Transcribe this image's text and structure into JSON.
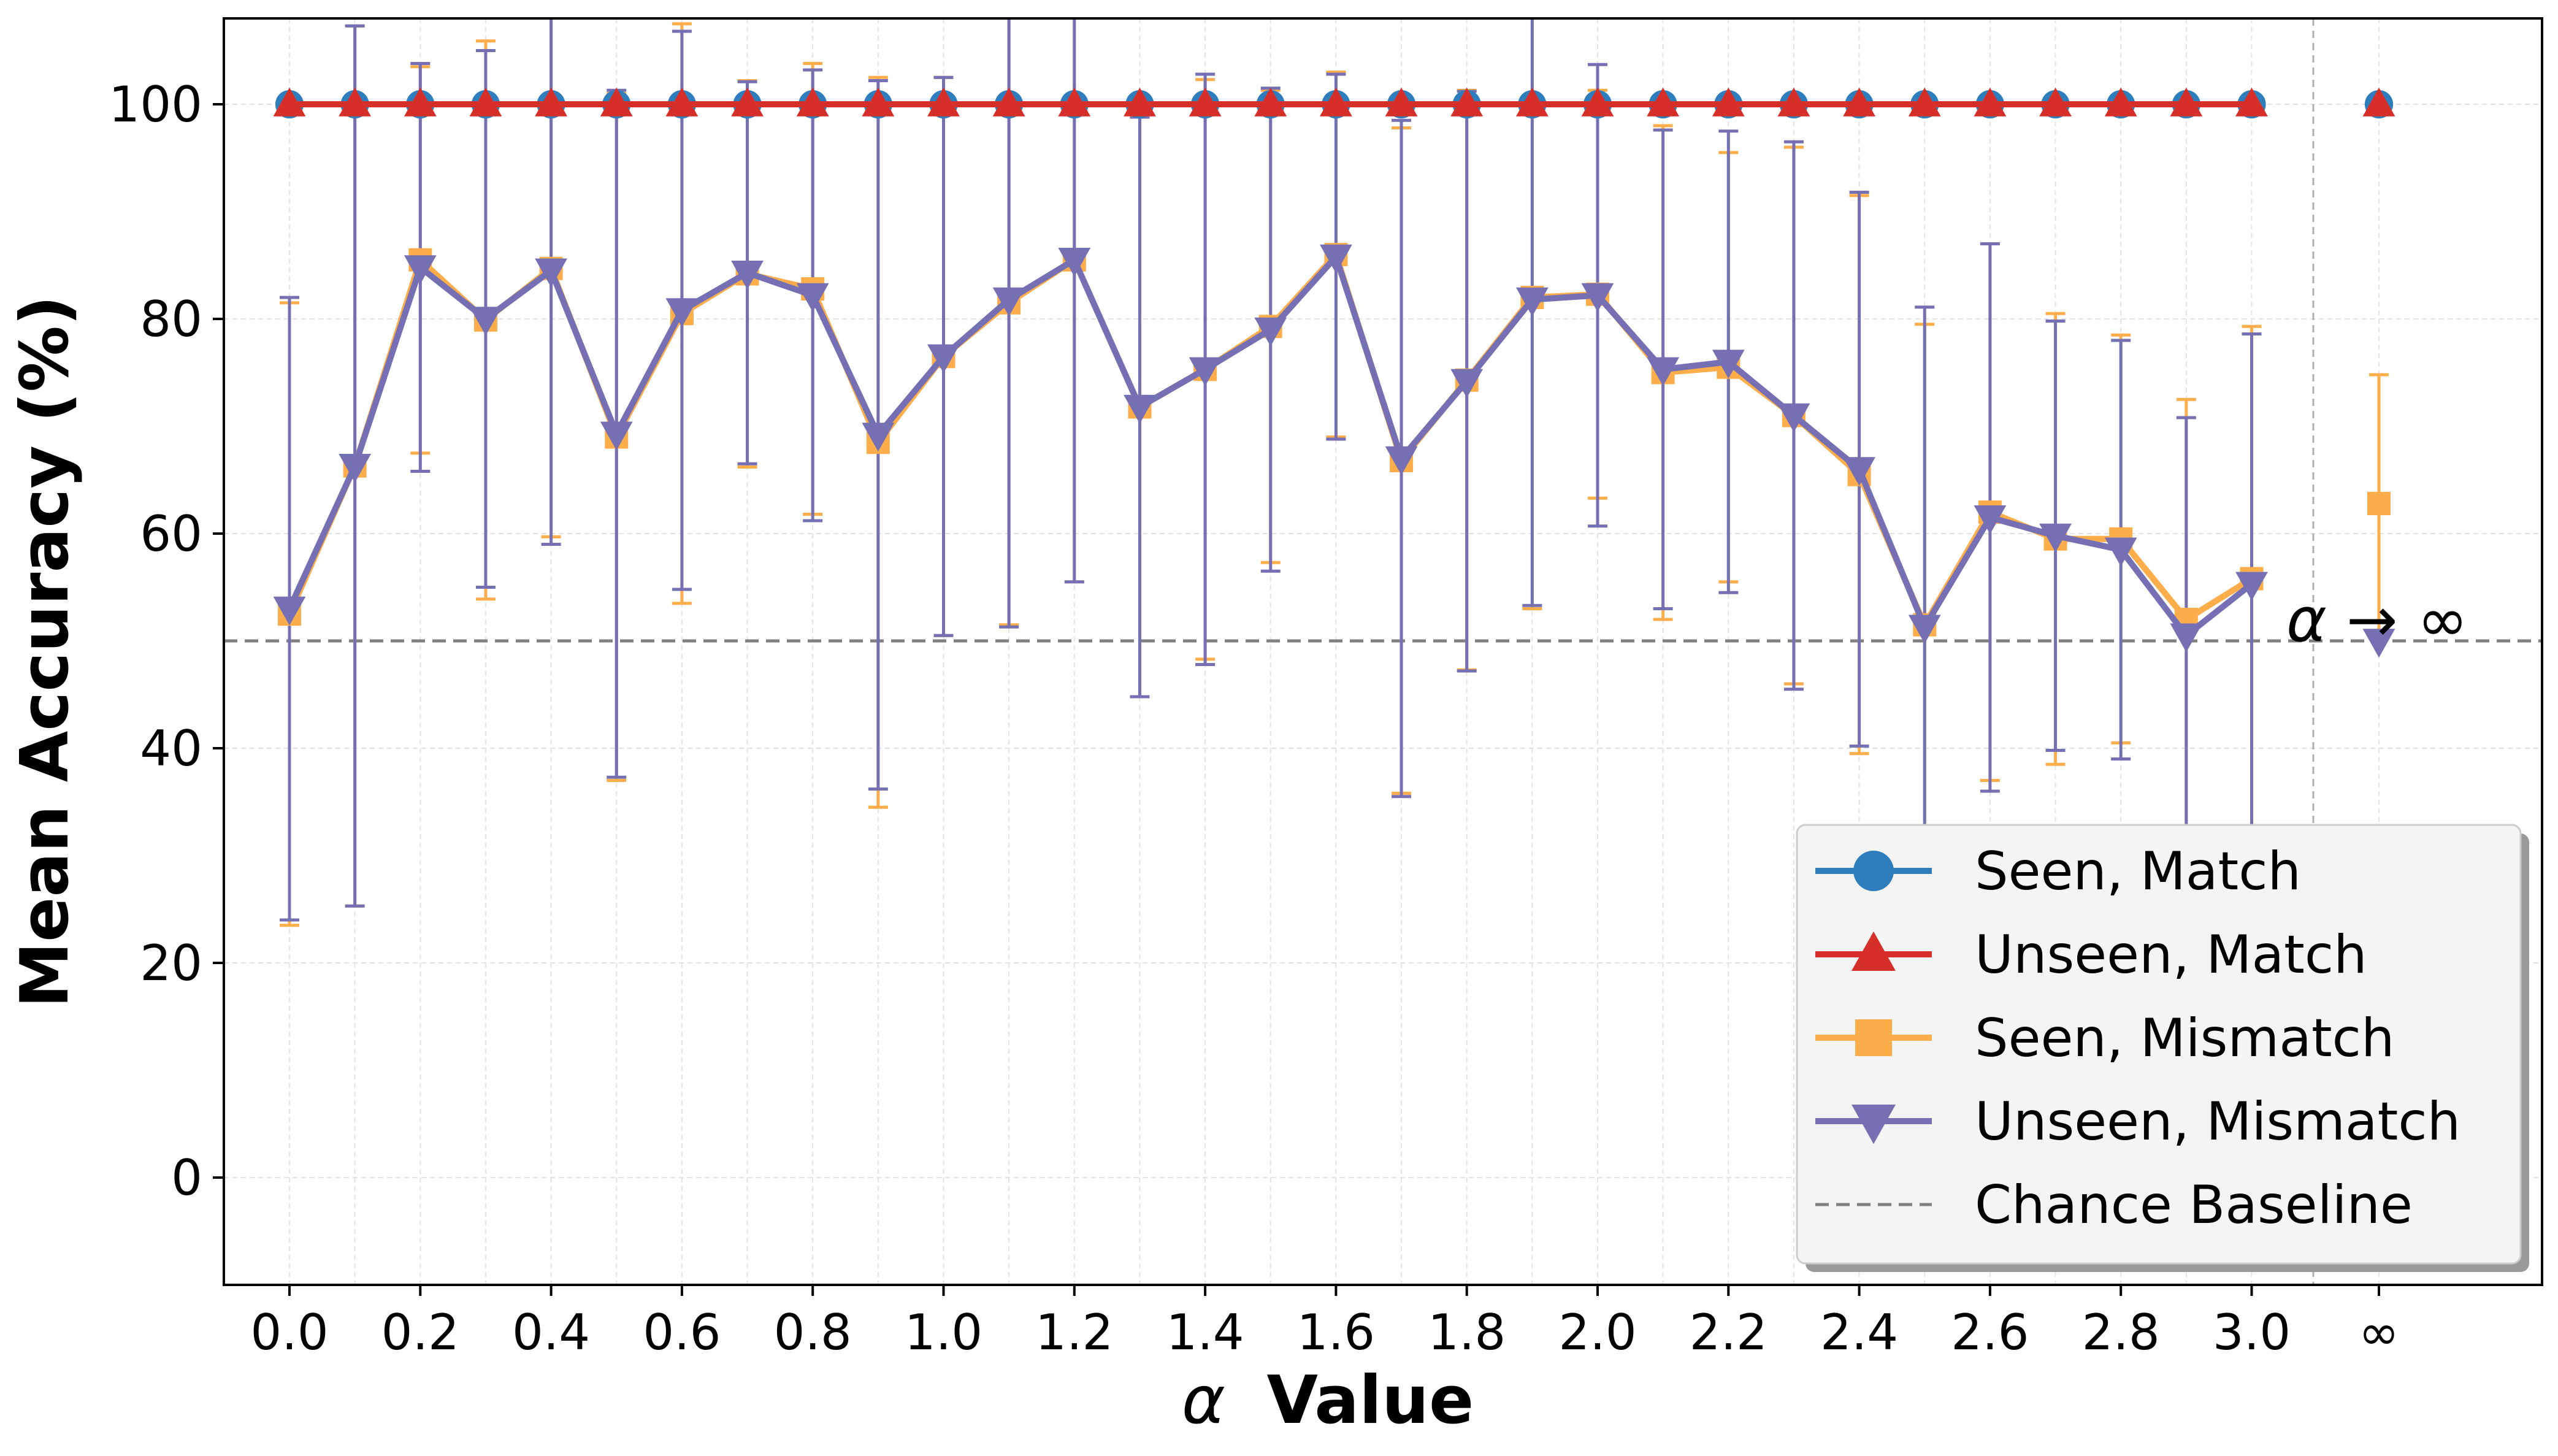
{
  "chart_data": {
    "type": "line",
    "title": "",
    "xlabel_prefix": "α",
    "xlabel": "Value",
    "ylabel": "Mean Accuracy (%)",
    "ylim": [
      -10,
      108
    ],
    "yticks": [
      0,
      20,
      40,
      60,
      80,
      100
    ],
    "x": [
      0.0,
      0.1,
      0.2,
      0.3,
      0.4,
      0.5,
      0.6,
      0.7,
      0.8,
      0.9,
      1.0,
      1.1,
      1.2,
      1.3,
      1.4,
      1.5,
      1.6,
      1.7,
      1.8,
      1.9,
      2.0,
      2.1,
      2.2,
      2.3,
      2.4,
      2.5,
      2.6,
      2.7,
      2.8,
      2.9,
      3.0
    ],
    "xtick_labels": [
      "0.0",
      "0.2",
      "0.4",
      "0.6",
      "0.8",
      "1.0",
      "1.2",
      "1.4",
      "1.6",
      "1.8",
      "2.0",
      "2.2",
      "2.4",
      "2.6",
      "2.8",
      "3.0",
      "∞"
    ],
    "grid": true,
    "legend_position": "lower-right",
    "series": [
      {
        "name": "Seen, Match",
        "color": "#2e7ebd",
        "marker": "circle",
        "values": [
          100,
          100,
          100,
          100,
          100,
          100,
          100,
          100,
          100,
          100,
          100,
          100,
          100,
          100,
          100,
          100,
          100,
          100,
          100,
          100,
          100,
          100,
          100,
          100,
          100,
          100,
          100,
          100,
          100,
          100,
          100
        ],
        "infinity_value": 100
      },
      {
        "name": "Unseen, Match",
        "color": "#d62f2a",
        "marker": "triangle-up",
        "values": [
          100,
          100,
          100,
          100,
          100,
          100,
          100,
          100,
          100,
          100,
          100,
          100,
          100,
          100,
          100,
          100,
          100,
          100,
          100,
          100,
          100,
          100,
          100,
          100,
          100,
          100,
          100,
          100,
          100,
          100,
          100
        ],
        "infinity_value": 100
      },
      {
        "name": "Seen, Mismatch",
        "color": "#fdae4b",
        "marker": "square",
        "values": [
          52.5,
          66.3,
          85.5,
          79.9,
          84.7,
          69.0,
          80.5,
          84.2,
          82.8,
          68.5,
          76.5,
          81.5,
          85.5,
          71.8,
          75.3,
          79.3,
          86.0,
          66.8,
          74.3,
          82.0,
          82.3,
          75.0,
          75.5,
          71.0,
          65.5,
          51.5,
          62.0,
          59.5,
          59.5,
          52.0,
          55.8
        ],
        "errors": [
          29,
          41,
          18,
          26,
          25,
          32,
          27,
          18,
          21,
          34,
          26,
          30,
          30,
          27,
          27,
          22,
          17,
          31,
          27,
          29,
          19,
          23,
          20,
          25,
          26,
          28,
          25,
          21,
          19,
          20.5,
          23.5
        ],
        "infinity_value": 62.8,
        "infinity_error": 12
      },
      {
        "name": "Unseen, Mismatch",
        "color": "#7570b3",
        "marker": "triangle-down",
        "values": [
          53.0,
          66.3,
          84.8,
          80.0,
          84.5,
          69.3,
          80.8,
          84.3,
          82.2,
          69.2,
          76.5,
          81.8,
          85.5,
          71.8,
          75.3,
          79.0,
          85.8,
          67.0,
          74.2,
          81.8,
          82.2,
          75.3,
          76.0,
          71.0,
          66.0,
          51.3,
          61.5,
          59.8,
          58.5,
          50.5,
          55.3
        ],
        "errors": [
          29,
          41,
          19,
          25,
          25.5,
          32,
          26,
          17.8,
          21,
          33,
          26,
          30.5,
          30,
          27,
          27.5,
          22.5,
          17,
          31.5,
          27,
          28.5,
          21.5,
          22.3,
          21.5,
          25.5,
          25.8,
          29.8,
          25.5,
          20,
          19.5,
          20.3,
          23.3
        ],
        "infinity_value": 50,
        "infinity_error": 0
      }
    ],
    "reference_line": {
      "name": "Chance Baseline",
      "value": 50,
      "color": "#808080"
    },
    "annotation": "α → ∞",
    "infinity_label": "∞"
  }
}
